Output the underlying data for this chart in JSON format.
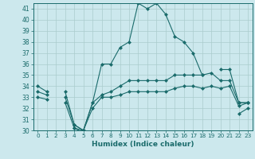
{
  "xlabel": "Humidex (Indice chaleur)",
  "bg_color": "#cce8ed",
  "line_color": "#1a6b6b",
  "grid_color": "#aacccc",
  "x": [
    0,
    1,
    2,
    3,
    4,
    5,
    6,
    7,
    8,
    9,
    10,
    11,
    12,
    13,
    14,
    15,
    16,
    17,
    18,
    19,
    20,
    21,
    22,
    23
  ],
  "line1": [
    34,
    33.5,
    null,
    33.5,
    30.5,
    30,
    32.5,
    36,
    36,
    37.5,
    38,
    41.5,
    41,
    41.5,
    40.5,
    38.5,
    38,
    37,
    35,
    null,
    35.5,
    35.5,
    32.5,
    32.5
  ],
  "line2": [
    33.5,
    33.2,
    null,
    33.0,
    30.5,
    30,
    32.5,
    33.2,
    33.5,
    34.0,
    34.5,
    34.5,
    34.5,
    34.5,
    34.5,
    35.0,
    35.0,
    35.0,
    35.0,
    35.2,
    34.5,
    34.5,
    32.5,
    32.5
  ],
  "line3": [
    33.0,
    32.8,
    null,
    32.5,
    30.2,
    30,
    32.0,
    33.0,
    33.0,
    33.2,
    33.5,
    33.5,
    33.5,
    33.5,
    33.5,
    33.8,
    34.0,
    34.0,
    33.8,
    34.0,
    33.8,
    34.0,
    32.2,
    32.5
  ],
  "line4": [
    null,
    null,
    null,
    null,
    30.2,
    29.8,
    null,
    null,
    null,
    null,
    null,
    null,
    null,
    null,
    null,
    null,
    null,
    null,
    null,
    null,
    null,
    null,
    31.5,
    32.0
  ],
  "ylim": [
    30,
    41.5
  ],
  "xlim": [
    -0.5,
    23.5
  ],
  "yticks": [
    30,
    31,
    32,
    33,
    34,
    35,
    36,
    37,
    38,
    39,
    40,
    41
  ],
  "xticks": [
    0,
    1,
    2,
    3,
    4,
    5,
    6,
    7,
    8,
    9,
    10,
    11,
    12,
    13,
    14,
    15,
    16,
    17,
    18,
    19,
    20,
    21,
    22,
    23
  ],
  "marker_size": 2.5,
  "line_width": 0.8
}
